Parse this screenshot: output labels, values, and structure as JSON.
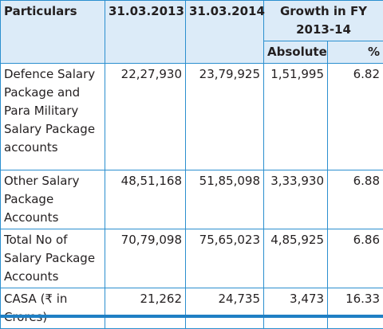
{
  "headers": {
    "particulars": "Particulars",
    "y2013": "31.03.2013",
    "y2014": "31.03.2014",
    "growth": "Growth in FY 2013-14",
    "absolute": "Absolute",
    "percent": "%"
  },
  "rows": [
    {
      "label": "Defence Salary Package and Para Military Salary Package accounts",
      "y2013": "22,27,930",
      "y2014": "23,79,925",
      "absolute": "1,51,995",
      "percent": "6.82"
    },
    {
      "label": "Other Salary Package Accounts",
      "y2013": "48,51,168",
      "y2014": "51,85,098",
      "absolute": "3,33,930",
      "percent": "6.88"
    },
    {
      "label": "Total No of Salary Package Accounts",
      "y2013": "70,79,098",
      "y2014": "75,65,023",
      "absolute": "4,85,925",
      "percent": "6.86"
    },
    {
      "label": "CASA (₹ in Crores)",
      "y2013": "21,262",
      "y2014": "24,735",
      "absolute": "3,473",
      "percent": "16.33"
    }
  ],
  "colors": {
    "border": "#2b8fcf",
    "header_bg": "#dcebf8",
    "bottom_bar": "#1f7fc4"
  }
}
